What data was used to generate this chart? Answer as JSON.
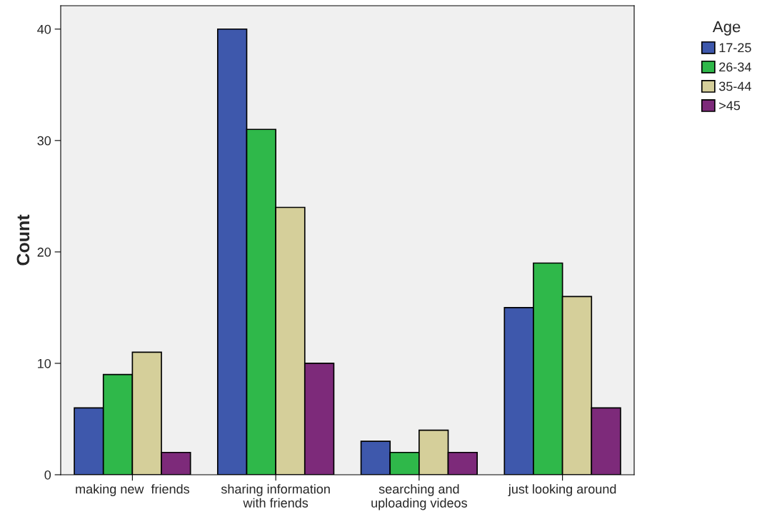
{
  "chart_data": {
    "type": "bar",
    "ylabel": "Count",
    "legend_title": "Age",
    "legend": "top right",
    "categories": [
      "making new  friends",
      "sharing information\nwith friends",
      "searching and\nuploading videos",
      "just looking around"
    ],
    "series": [
      {
        "name": "17-25",
        "color": "#3e58ac",
        "values": [
          6,
          40,
          3,
          15
        ]
      },
      {
        "name": "26-34",
        "color": "#2fb84a",
        "values": [
          9,
          31,
          2,
          19
        ]
      },
      {
        "name": "35-44",
        "color": "#d5cf9a",
        "values": [
          11,
          24,
          4,
          16
        ]
      },
      {
        "name": ">45",
        "color": "#7d2a7a",
        "values": [
          2,
          10,
          2,
          6
        ]
      }
    ],
    "ylim": [
      0,
      42.1
    ],
    "yticks": [
      0,
      10,
      20,
      30,
      40
    ],
    "grid": false
  }
}
